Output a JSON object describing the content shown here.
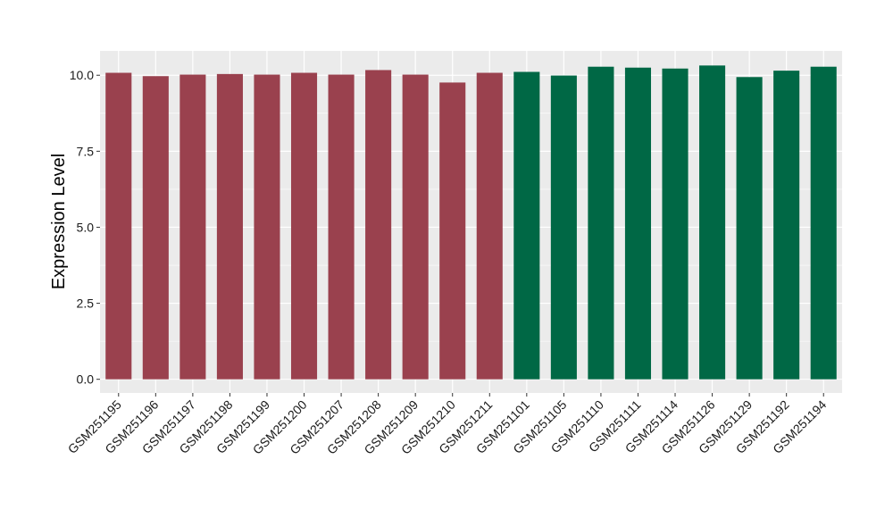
{
  "chart_data": {
    "type": "bar",
    "title": "",
    "xlabel": "",
    "ylabel": "Expression Level",
    "ylim": [
      -0.45,
      10.8
    ],
    "yticks": [
      0.0,
      2.5,
      5.0,
      7.5,
      10.0
    ],
    "ytick_labels": [
      "0.0",
      "2.5",
      "5.0",
      "7.5",
      "10.0"
    ],
    "grid": true,
    "legend": "none",
    "panel_background": "#ebebeb",
    "categories": [
      "GSM251195",
      "GSM251196",
      "GSM251197",
      "GSM251198",
      "GSM251199",
      "GSM251200",
      "GSM251207",
      "GSM251208",
      "GSM251209",
      "GSM251210",
      "GSM251211",
      "GSM251101",
      "GSM251105",
      "GSM251110",
      "GSM251111",
      "GSM251114",
      "GSM251126",
      "GSM251129",
      "GSM251192",
      "GSM251194"
    ],
    "values": [
      10.08,
      9.97,
      10.02,
      10.04,
      10.02,
      10.08,
      10.02,
      10.17,
      10.02,
      9.76,
      10.08,
      10.11,
      9.99,
      10.28,
      10.25,
      10.22,
      10.32,
      9.94,
      10.15,
      10.28
    ],
    "groups": [
      0,
      0,
      0,
      0,
      0,
      0,
      0,
      0,
      0,
      0,
      0,
      1,
      1,
      1,
      1,
      1,
      1,
      1,
      1,
      1
    ],
    "group_colors": [
      "#9a414e",
      "#006845"
    ]
  }
}
